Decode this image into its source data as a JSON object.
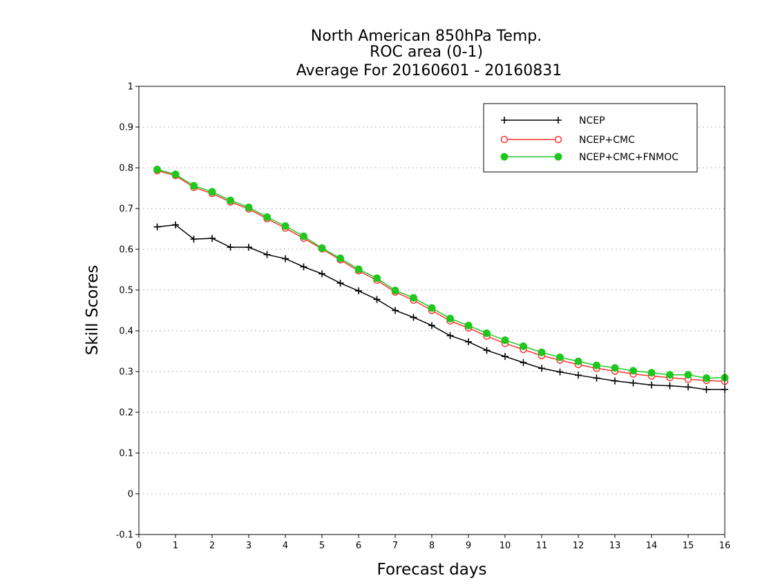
{
  "chart_data": {
    "type": "line",
    "title_lines": [
      "North American 850hPa Temp.",
      "ROC area (0-1)",
      "Average For 20160601 - 20160831"
    ],
    "xlabel": "Forecast days",
    "ylabel": "Skill Scores",
    "xlim": [
      0,
      16
    ],
    "ylim": [
      -0.1,
      1
    ],
    "x_ticks": [
      0,
      1,
      2,
      3,
      4,
      5,
      6,
      7,
      8,
      9,
      10,
      11,
      12,
      13,
      14,
      15,
      16
    ],
    "x_tick_labels": [
      "0",
      "1",
      "2",
      "3",
      "4",
      "5",
      "6",
      "7",
      "8",
      "9",
      "10",
      "11",
      "12",
      "13",
      "14",
      "15",
      "16"
    ],
    "y_ticks": [
      -0.1,
      0,
      0.1,
      0.2,
      0.3,
      0.4,
      0.5,
      0.6,
      0.7,
      0.8,
      0.9,
      1
    ],
    "y_tick_labels": [
      "-0.1",
      "0",
      "0.1",
      "0.2",
      "0.3",
      "0.4",
      "0.5",
      "0.6",
      "0.7",
      "0.8",
      "0.9",
      "1"
    ],
    "grid": "horizontal dotted",
    "legend_position": "top-right",
    "x": [
      0.5,
      1,
      1.5,
      2,
      2.5,
      3,
      3.5,
      4,
      4.5,
      5,
      5.5,
      6,
      6.5,
      7,
      7.5,
      8,
      8.5,
      9,
      9.5,
      10,
      10.5,
      11,
      11.5,
      12,
      12.5,
      13,
      13.5,
      14,
      14.5,
      15,
      15.5,
      16
    ],
    "series": [
      {
        "name": "NCEP",
        "color": "#000000",
        "marker": "plus",
        "values": [
          0.655,
          0.66,
          0.625,
          0.627,
          0.605,
          0.605,
          0.587,
          0.577,
          0.557,
          0.54,
          0.517,
          0.498,
          0.477,
          0.45,
          0.433,
          0.413,
          0.388,
          0.373,
          0.352,
          0.337,
          0.322,
          0.308,
          0.299,
          0.291,
          0.284,
          0.277,
          0.272,
          0.267,
          0.265,
          0.262,
          0.256,
          0.256
        ]
      },
      {
        "name": "NCEP+CMC",
        "color": "#ff3030",
        "marker": "open-circle",
        "values": [
          0.793,
          0.781,
          0.752,
          0.737,
          0.716,
          0.699,
          0.675,
          0.652,
          0.627,
          0.601,
          0.574,
          0.547,
          0.524,
          0.495,
          0.475,
          0.45,
          0.424,
          0.407,
          0.387,
          0.369,
          0.354,
          0.339,
          0.328,
          0.317,
          0.308,
          0.301,
          0.294,
          0.289,
          0.285,
          0.281,
          0.278,
          0.276
        ]
      },
      {
        "name": "NCEP+CMC+FNMOC",
        "color": "#1ec81e",
        "marker": "filled-circle",
        "values": [
          0.796,
          0.784,
          0.756,
          0.741,
          0.72,
          0.703,
          0.679,
          0.657,
          0.632,
          0.603,
          0.578,
          0.551,
          0.529,
          0.499,
          0.481,
          0.456,
          0.43,
          0.413,
          0.394,
          0.377,
          0.362,
          0.347,
          0.335,
          0.325,
          0.315,
          0.309,
          0.302,
          0.297,
          0.292,
          0.292,
          0.284,
          0.285
        ]
      }
    ]
  }
}
